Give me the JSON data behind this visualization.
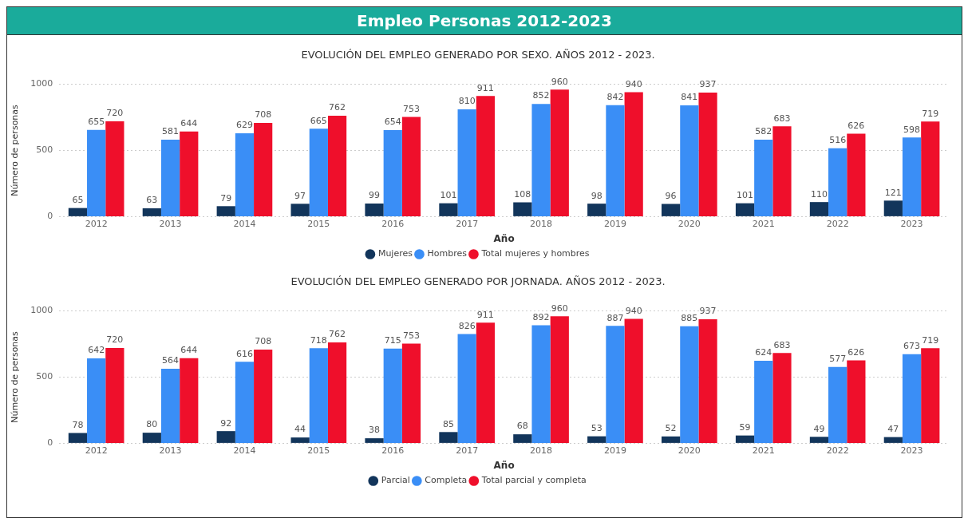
{
  "chart_data": [
    {
      "type": "other",
      "title": "Empleo Personas 2012-2023"
    },
    {
      "type": "bar",
      "title": "EVOLUCIÓN DEL EMPLEO GENERADO POR SEXO. AÑOS 2012 - 2023.",
      "xlabel": "Año",
      "ylabel": "Número de personas",
      "categories": [
        "2012",
        "2013",
        "2014",
        "2015",
        "2016",
        "2017",
        "2018",
        "2019",
        "2020",
        "2021",
        "2022",
        "2023"
      ],
      "series": [
        {
          "name": "Mujeres",
          "color": "#12355b",
          "values": [
            65,
            63,
            79,
            97,
            99,
            101,
            108,
            98,
            96,
            101,
            110,
            121
          ]
        },
        {
          "name": "Hombres",
          "color": "#3a8ef6",
          "values": [
            655,
            581,
            629,
            665,
            654,
            810,
            852,
            842,
            841,
            582,
            516,
            598
          ]
        },
        {
          "name": "Total mujeres y hombres",
          "color": "#ef0f2b",
          "values": [
            720,
            644,
            708,
            762,
            753,
            911,
            960,
            940,
            937,
            683,
            626,
            719
          ]
        }
      ],
      "ylim": [
        0,
        1000
      ],
      "yticks": [
        0,
        500,
        1000
      ],
      "grid": "y",
      "legend": "bottom",
      "data_labels": true
    },
    {
      "type": "bar",
      "title": "EVOLUCIÓN DEL EMPLEO GENERADO POR JORNADA. AÑOS 2012 - 2023.",
      "xlabel": "Año",
      "ylabel": "Número de personas",
      "categories": [
        "2012",
        "2013",
        "2014",
        "2015",
        "2016",
        "2017",
        "2018",
        "2019",
        "2020",
        "2021",
        "2022",
        "2023"
      ],
      "series": [
        {
          "name": "Parcial",
          "color": "#12355b",
          "values": [
            78,
            80,
            92,
            44,
            38,
            85,
            68,
            53,
            52,
            59,
            49,
            47
          ]
        },
        {
          "name": "Completa",
          "color": "#3a8ef6",
          "values": [
            642,
            564,
            616,
            718,
            715,
            826,
            892,
            887,
            885,
            624,
            577,
            673
          ]
        },
        {
          "name": "Total parcial y completa",
          "color": "#ef0f2b",
          "values": [
            720,
            644,
            708,
            762,
            753,
            911,
            960,
            940,
            937,
            683,
            626,
            719
          ]
        }
      ],
      "ylim": [
        0,
        1000
      ],
      "yticks": [
        0,
        500,
        1000
      ],
      "grid": "y",
      "legend": "bottom",
      "data_labels": true
    }
  ]
}
